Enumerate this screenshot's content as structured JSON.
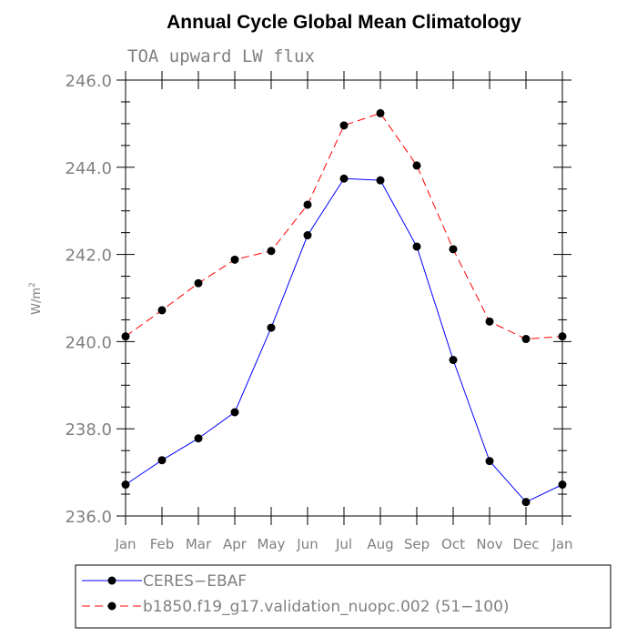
{
  "chart_data": {
    "type": "line",
    "title": "Annual Cycle Global Mean Climatology",
    "subtitle": "TOA upward LW flux",
    "ylabel": "W/m",
    "ylabel_sup": "2",
    "categories": [
      "Jan",
      "Feb",
      "Mar",
      "Apr",
      "May",
      "Jun",
      "Jul",
      "Aug",
      "Sep",
      "Oct",
      "Nov",
      "Dec",
      "Jan"
    ],
    "ylim": [
      236.0,
      246.0
    ],
    "yticks": [
      "236.0",
      "238.0",
      "240.0",
      "242.0",
      "244.0",
      "246.0"
    ],
    "ytick_values": [
      236,
      238,
      240,
      242,
      244,
      246
    ],
    "grid": false,
    "legend_placement": "bottom-left",
    "series": [
      {
        "name": "CERES−EBAF",
        "color": "#0000ff",
        "dash": "solid",
        "values": [
          236.72,
          237.28,
          237.78,
          238.38,
          240.32,
          242.44,
          243.74,
          243.7,
          242.18,
          239.58,
          237.26,
          236.32,
          236.72
        ]
      },
      {
        "name": "b1850.f19_g17.validation_nuopc.002 (51−100)",
        "color": "#ff0000",
        "dash": "dashed",
        "values": [
          240.12,
          240.72,
          241.34,
          241.88,
          242.08,
          243.14,
          244.96,
          245.24,
          244.04,
          242.12,
          240.46,
          240.06,
          240.12
        ]
      }
    ]
  }
}
